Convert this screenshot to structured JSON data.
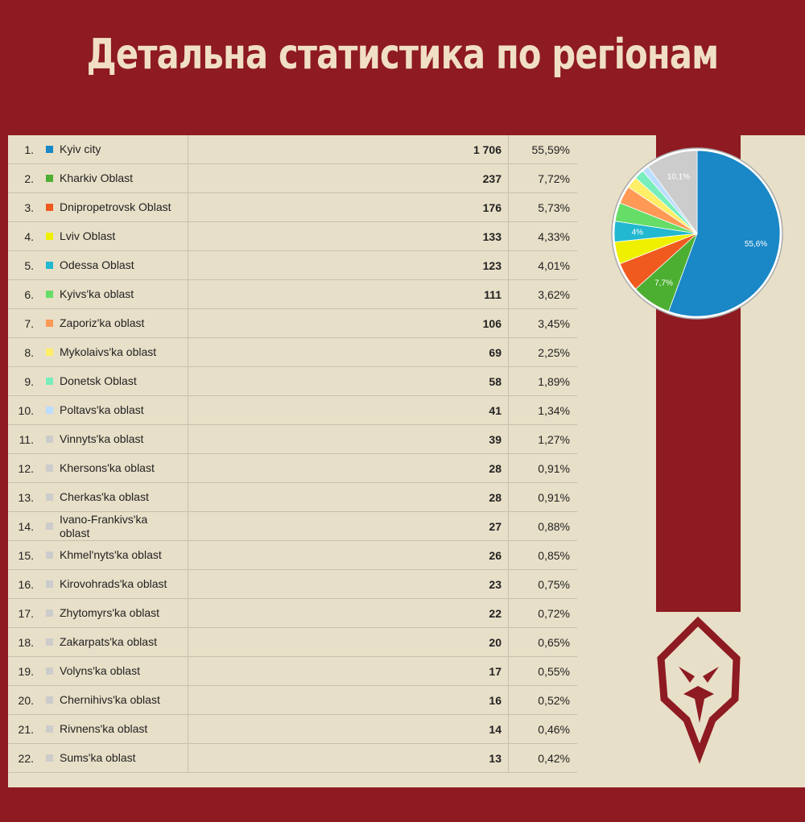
{
  "title": "Детальна статистика по регіонам",
  "table": {
    "rows": [
      {
        "rank": "1.",
        "color": "#1a87c6",
        "region": "Kyiv city",
        "count": "1 706",
        "percent": "55,59%"
      },
      {
        "rank": "2.",
        "color": "#4caf32",
        "region": "Kharkiv Oblast",
        "count": "237",
        "percent": "7,72%"
      },
      {
        "rank": "3.",
        "color": "#f05a1e",
        "region": "Dnipropetrovsk Oblast",
        "count": "176",
        "percent": "5,73%"
      },
      {
        "rank": "4.",
        "color": "#eef000",
        "region": "Lviv Oblast",
        "count": "133",
        "percent": "4,33%"
      },
      {
        "rank": "5.",
        "color": "#22b8d0",
        "region": "Odessa Oblast",
        "count": "123",
        "percent": "4,01%"
      },
      {
        "rank": "6.",
        "color": "#66dd66",
        "region": "Kyivs'ka oblast",
        "count": "111",
        "percent": "3,62%"
      },
      {
        "rank": "7.",
        "color": "#ff9955",
        "region": "Zaporiz'ka oblast",
        "count": "106",
        "percent": "3,45%"
      },
      {
        "rank": "8.",
        "color": "#ffee66",
        "region": "Mykolaivs'ka oblast",
        "count": "69",
        "percent": "2,25%"
      },
      {
        "rank": "9.",
        "color": "#77eebb",
        "region": "Donetsk Oblast",
        "count": "58",
        "percent": "1,89%"
      },
      {
        "rank": "10.",
        "color": "#bbddff",
        "region": "Poltavs'ka oblast",
        "count": "41",
        "percent": "1,34%"
      },
      {
        "rank": "11.",
        "color": "#cccccc",
        "region": "Vinnyts'ka oblast",
        "count": "39",
        "percent": "1,27%"
      },
      {
        "rank": "12.",
        "color": "#cccccc",
        "region": "Khersons'ka oblast",
        "count": "28",
        "percent": "0,91%"
      },
      {
        "rank": "13.",
        "color": "#cccccc",
        "region": "Cherkas'ka oblast",
        "count": "28",
        "percent": "0,91%"
      },
      {
        "rank": "14.",
        "color": "#cccccc",
        "region": "Ivano-Frankivs'ka oblast",
        "count": "27",
        "percent": "0,88%"
      },
      {
        "rank": "15.",
        "color": "#cccccc",
        "region": "Khmel'nyts'ka oblast",
        "count": "26",
        "percent": "0,85%"
      },
      {
        "rank": "16.",
        "color": "#cccccc",
        "region": "Kirovohrads'ka oblast",
        "count": "23",
        "percent": "0,75%"
      },
      {
        "rank": "17.",
        "color": "#cccccc",
        "region": "Zhytomyrs'ka oblast",
        "count": "22",
        "percent": "0,72%"
      },
      {
        "rank": "18.",
        "color": "#cccccc",
        "region": "Zakarpats'ka oblast",
        "count": "20",
        "percent": "0,65%"
      },
      {
        "rank": "19.",
        "color": "#cccccc",
        "region": "Volyns'ka oblast",
        "count": "17",
        "percent": "0,55%"
      },
      {
        "rank": "20.",
        "color": "#cccccc",
        "region": "Chernihivs'ka oblast",
        "count": "16",
        "percent": "0,52%"
      },
      {
        "rank": "21.",
        "color": "#cccccc",
        "region": "Rivnens'ka oblast",
        "count": "14",
        "percent": "0,46%"
      },
      {
        "rank": "22.",
        "color": "#cccccc",
        "region": "Sums'ka oblast",
        "count": "13",
        "percent": "0,42%"
      }
    ]
  },
  "chart_data": {
    "type": "pie",
    "values": [
      55.59,
      7.72,
      5.73,
      4.33,
      4.01,
      3.62,
      3.45,
      2.25,
      1.89,
      1.34,
      10.07
    ],
    "value_labels": [
      "55,6%",
      "7,7%",
      null,
      null,
      "4%",
      null,
      null,
      null,
      null,
      null,
      "10,1%"
    ],
    "colors": [
      "#1a87c6",
      "#4caf32",
      "#f05a1e",
      "#eef000",
      "#22b8d0",
      "#66dd66",
      "#ff9955",
      "#ffee66",
      "#77eebb",
      "#bbddff",
      "#cccccc"
    ]
  }
}
